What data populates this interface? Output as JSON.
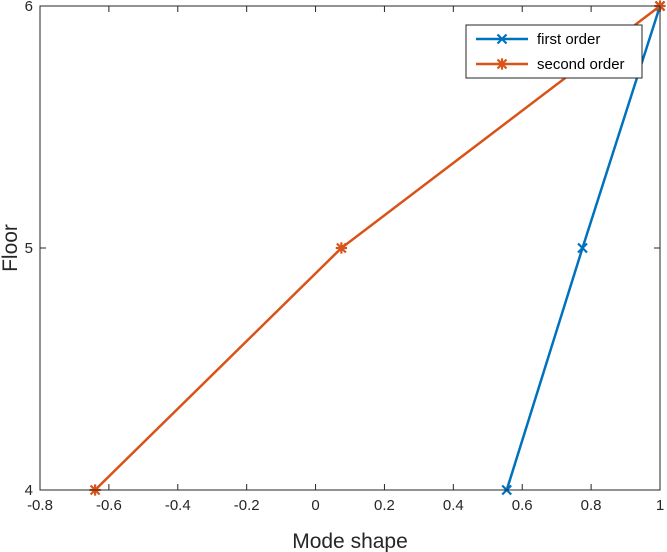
{
  "chart_data": {
    "type": "line",
    "xlabel": "Mode shape",
    "ylabel": "Floor",
    "xlim": [
      -0.8,
      1
    ],
    "ylim": [
      4,
      6
    ],
    "xticks": [
      "-0.8",
      "-0.6",
      "-0.4",
      "-0.2",
      "0",
      "0.2",
      "0.4",
      "0.6",
      "0.8",
      "1"
    ],
    "yticks": [
      "4",
      "5",
      "6"
    ],
    "grid": false,
    "legend_position": "top-right",
    "series": [
      {
        "name": "first order",
        "color": "#0072BD",
        "marker": "x",
        "points": [
          {
            "x": 0.555,
            "y": 4
          },
          {
            "x": 0.775,
            "y": 5
          },
          {
            "x": 1.0,
            "y": 6
          }
        ]
      },
      {
        "name": "second order",
        "color": "#D95319",
        "marker": "asterisk",
        "points": [
          {
            "x": -0.64,
            "y": 4
          },
          {
            "x": 0.075,
            "y": 5
          },
          {
            "x": 1.0,
            "y": 6
          }
        ]
      }
    ]
  }
}
